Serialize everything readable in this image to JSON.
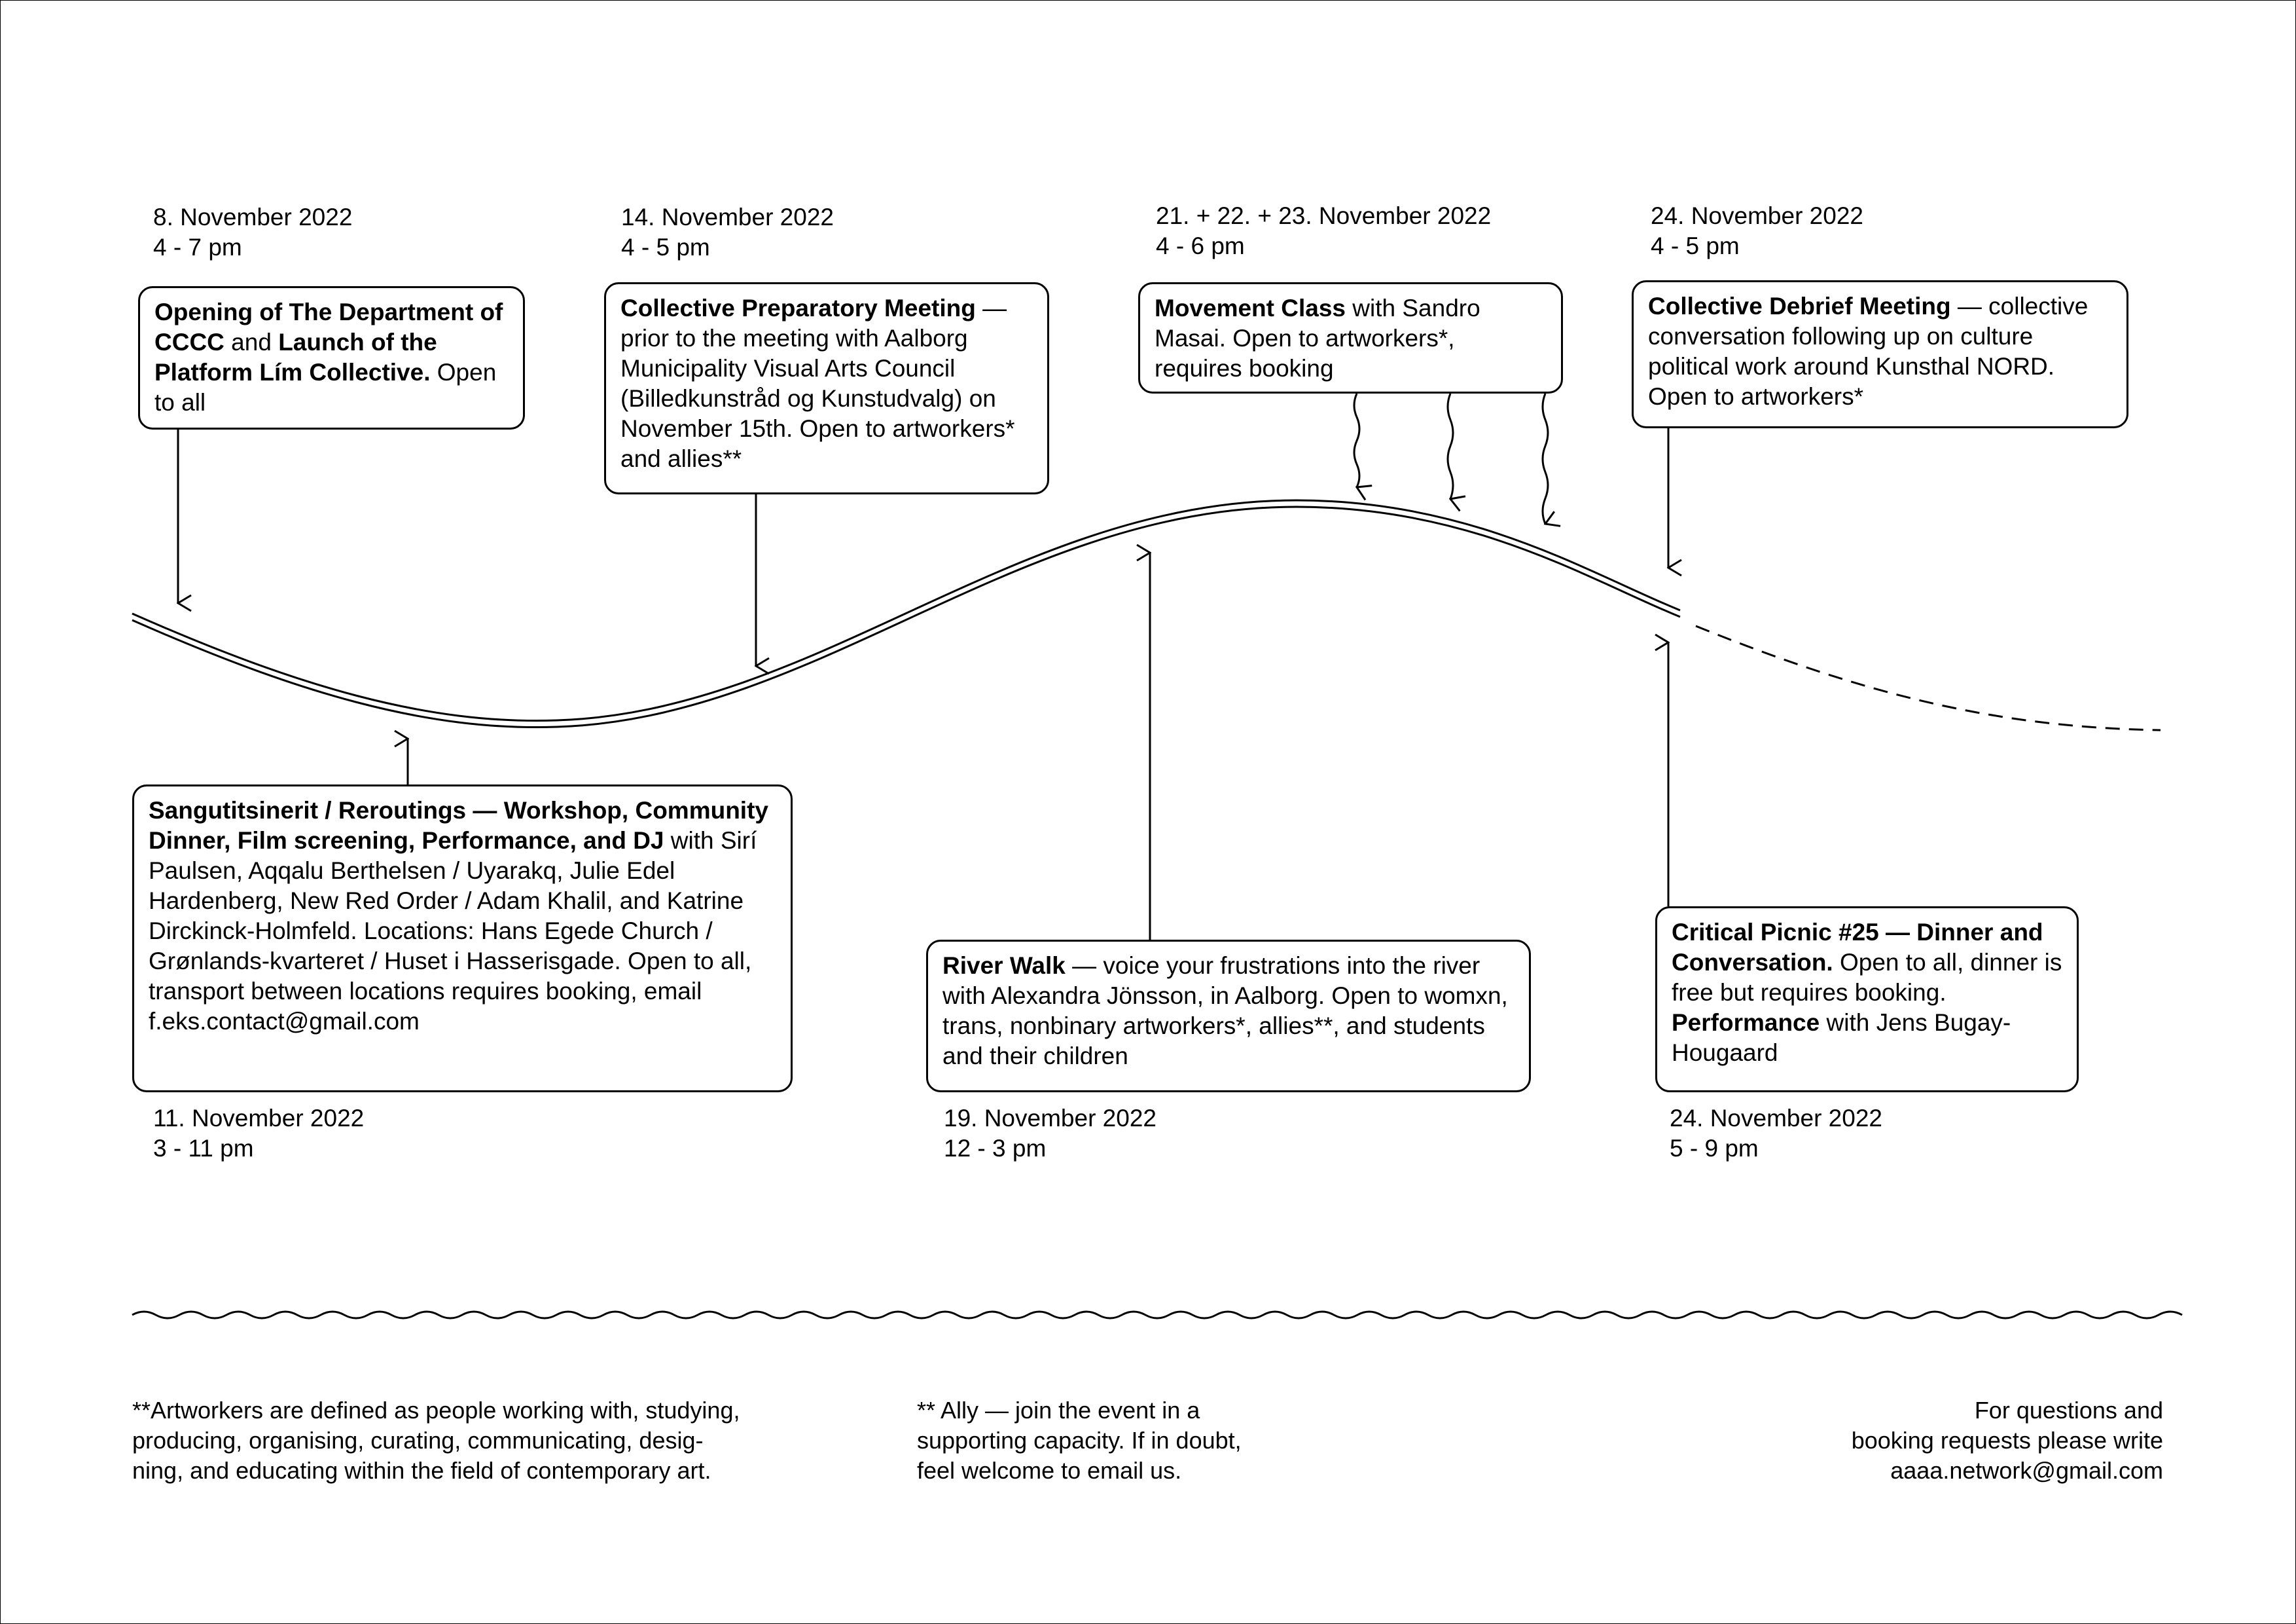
{
  "events": [
    {
      "date": "8. November 2022",
      "time": "4 - 7 pm",
      "text": [
        {
          "b": true,
          "t": "Opening of The Department of CCCC"
        },
        {
          "b": false,
          "t": " and "
        },
        {
          "b": true,
          "t": "Launch of the Platform Lím Collective."
        },
        {
          "b": false,
          "t": " Open to all"
        }
      ]
    },
    {
      "date": "14. November 2022",
      "time": "4 - 5 pm",
      "text": [
        {
          "b": true,
          "t": "Collective Preparatory Meeting"
        },
        {
          "b": false,
          "t": " — prior to the meeting with Aalborg Municipality Visual Arts Council (Billedkunstråd og Kunstudvalg) on November 15th. Open to artworkers* and allies**"
        }
      ]
    },
    {
      "date": "21. + 22. + 23. November 2022",
      "time": "4 - 6 pm",
      "text": [
        {
          "b": true,
          "t": "Movement Class"
        },
        {
          "b": false,
          "t": " with Sandro Masai. Open to artworkers*, requires booking"
        }
      ]
    },
    {
      "date": "24. November 2022",
      "time": "4 - 5 pm",
      "text": [
        {
          "b": true,
          "t": "Collective Debrief Meeting"
        },
        {
          "b": false,
          "t": " — collective conversation following up on culture political work around Kunsthal NORD. Open to artworkers*"
        }
      ]
    },
    {
      "date": "11. November 2022",
      "time": "3 - 11 pm",
      "text": [
        {
          "b": true,
          "t": "Sangutitsinerit / Reroutings — Workshop, Community Dinner, Film screening, Performance, and DJ"
        },
        {
          "b": false,
          "t": " with Sirí Paulsen, Aqqalu Berthelsen / Uyarakq, Julie Edel Hardenberg, New Red Order / Adam Khalil, and Katrine Dirckinck-Holmfeld. Locations: Hans Egede Church / Grønlands-kvarteret / Huset i Hasserisgade. Open to all, transport between locations requires booking, email f.eks.contact@gmail.com"
        }
      ]
    },
    {
      "date": "19. November 2022",
      "time": "12 - 3 pm",
      "text": [
        {
          "b": true,
          "t": "River Walk"
        },
        {
          "b": false,
          "t": " — voice your frustrations into the river with Alexandra Jönsson, in Aalborg. Open to womxn, trans, nonbinary artworkers*, allies**, and students and their children"
        }
      ]
    },
    {
      "date": "24. November 2022",
      "time": "5 - 9 pm",
      "text": [
        {
          "b": true,
          "t": "Critical Picnic #25 — Dinner and Conversation."
        },
        {
          "b": false,
          "t": " Open to all, dinner is free but requires booking. "
        },
        {
          "b": true,
          "t": "Performance"
        },
        {
          "b": false,
          "t": " with Jens Bugay-Hougaard"
        }
      ]
    }
  ],
  "footer": {
    "artworkers": [
      "**Artworkers are defined as people working with, studying,",
      "producing, organising, curating, communicating, desig-",
      "ning, and educating within the field of contemporary art."
    ],
    "ally": [
      "** Ally — join the event in a",
      "supporting capacity. If in doubt,",
      "feel welcome to email us."
    ],
    "contact": [
      "For questions and",
      "booking requests please write",
      "aaaa.network@gmail.com"
    ]
  }
}
